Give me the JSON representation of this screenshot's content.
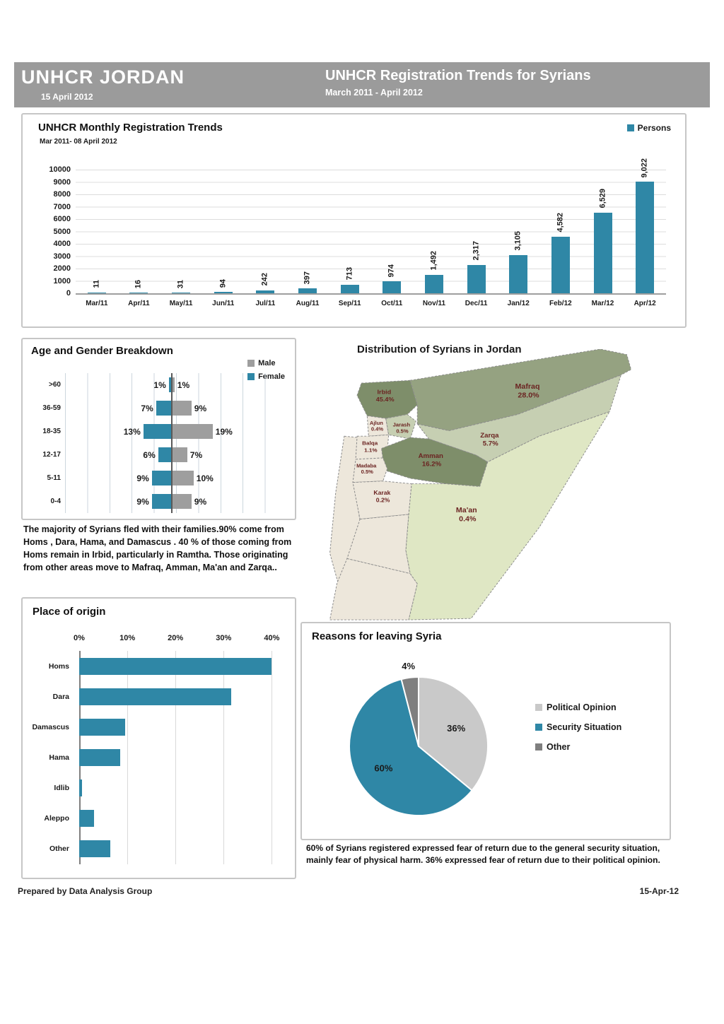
{
  "header": {
    "left_title": "UNHCR JORDAN",
    "left_date": "15 April 2012",
    "right_title": "UNHCR Registration Trends for Syrians",
    "right_subtitle": "March 2011 - April 2012"
  },
  "narrative": {
    "families": "The majority of Syrians fled with their families.90% come from Homs , Dara, Hama, and Damascus . 40 % of those coming from Homs remain in Irbid, particularly in Ramtha. Those originating from other areas move to Mafraq, Amman, Ma'an and Zarqa..",
    "reasons": "60% of Syrians registered expressed fear of return due to the general security situation, mainly fear of physical harm. 36% expressed fear of return due to their political opinion."
  },
  "footer": {
    "left": "Prepared by Data Analysis Group",
    "right": "15-Apr-12"
  },
  "palette": {
    "teal": "#2f87a6",
    "male_gray": "#9e9e9e",
    "header_gray": "#9b9b9b",
    "pie_political": "#c9c9c9",
    "pie_security": "#2f87a6",
    "pie_other": "#7f7f7f",
    "map_label_red": "#6b2422"
  },
  "chart_data": [
    {
      "id": "monthly_trends",
      "type": "bar",
      "title": "UNHCR Monthly Registration Trends",
      "subtitle": "Mar 2011- 08 April 2012",
      "legend_label": "Persons",
      "categories": [
        "Mar/11",
        "Apr/11",
        "May/11",
        "Jun/11",
        "Jul/11",
        "Aug/11",
        "Sep/11",
        "Oct/11",
        "Nov/11",
        "Dec/11",
        "Jan/12",
        "Feb/12",
        "Mar/12",
        "Apr/12"
      ],
      "values": [
        11,
        16,
        31,
        94,
        242,
        397,
        713,
        974,
        1492,
        2317,
        3105,
        4582,
        6529,
        9022
      ],
      "value_labels": [
        "11",
        "16",
        "31",
        "94",
        "242",
        "397",
        "713",
        "974",
        "1,492",
        "2,317",
        "3,105",
        "4,582",
        "6,529",
        "9,022"
      ],
      "ylim": [
        0,
        10000
      ],
      "yticks": [
        "10000",
        "9000",
        "8000",
        "7000",
        "6000",
        "5000",
        "4000",
        "3000",
        "2000",
        "1000",
        "0"
      ],
      "grid": true,
      "legend_position": "top-right"
    },
    {
      "id": "age_gender",
      "type": "bar",
      "title": "Age and Gender Breakdown",
      "categories": [
        ">60",
        "36-59",
        "18-35",
        "12-17",
        "5-11",
        "0-4"
      ],
      "series": [
        {
          "name": "Male",
          "values": [
            1,
            9,
            19,
            7,
            10,
            9
          ],
          "labels": [
            "1%",
            "9%",
            "19%",
            "7%",
            "10%",
            "9%"
          ]
        },
        {
          "name": "Female",
          "values": [
            1,
            7,
            13,
            6,
            9,
            9
          ],
          "labels": [
            "1%",
            "7%",
            "13%",
            "6%",
            "9%",
            "9%"
          ]
        }
      ],
      "unit": "%",
      "legend_position": "top-right"
    },
    {
      "id": "distribution_map",
      "type": "table",
      "title": "Distribution of Syrians in Jordan",
      "regions": [
        {
          "name": "Irbid",
          "pct": "45.4%"
        },
        {
          "name": "Ajlun",
          "pct": "0.4%"
        },
        {
          "name": "Jarash",
          "pct": "0.5%"
        },
        {
          "name": "Mafraq",
          "pct": "28.0%"
        },
        {
          "name": "Balqa",
          "pct": "1.1%"
        },
        {
          "name": "Zarqa",
          "pct": "5.7%"
        },
        {
          "name": "Amman",
          "pct": "16.2%"
        },
        {
          "name": "Madaba",
          "pct": "0.5%"
        },
        {
          "name": "Karak",
          "pct": "0.2%"
        },
        {
          "name": "Ma'an",
          "pct": "0.4%"
        }
      ]
    },
    {
      "id": "place_of_origin",
      "type": "bar",
      "title": "Place of origin",
      "categories": [
        "Homs",
        "Dara",
        "Damascus",
        "Hama",
        "Idlib",
        "Aleppo",
        "Other"
      ],
      "values": [
        40,
        31.5,
        9.5,
        8.5,
        0.6,
        3.1,
        6.4
      ],
      "xticks": [
        "0%",
        "10%",
        "20%",
        "30%",
        "40%"
      ],
      "xlim": [
        0,
        42
      ],
      "unit": "%"
    },
    {
      "id": "reasons_for_leaving",
      "type": "pie",
      "title": "Reasons for leaving Syria",
      "slices": [
        {
          "label": "Political Opinion",
          "value": 36,
          "pct_label": "36%",
          "color": "#c9c9c9"
        },
        {
          "label": "Security Situation",
          "value": 60,
          "pct_label": "60%",
          "color": "#2f87a6"
        },
        {
          "label": "Other",
          "value": 4,
          "pct_label": "4%",
          "color": "#7f7f7f"
        }
      ],
      "legend_position": "right"
    }
  ]
}
